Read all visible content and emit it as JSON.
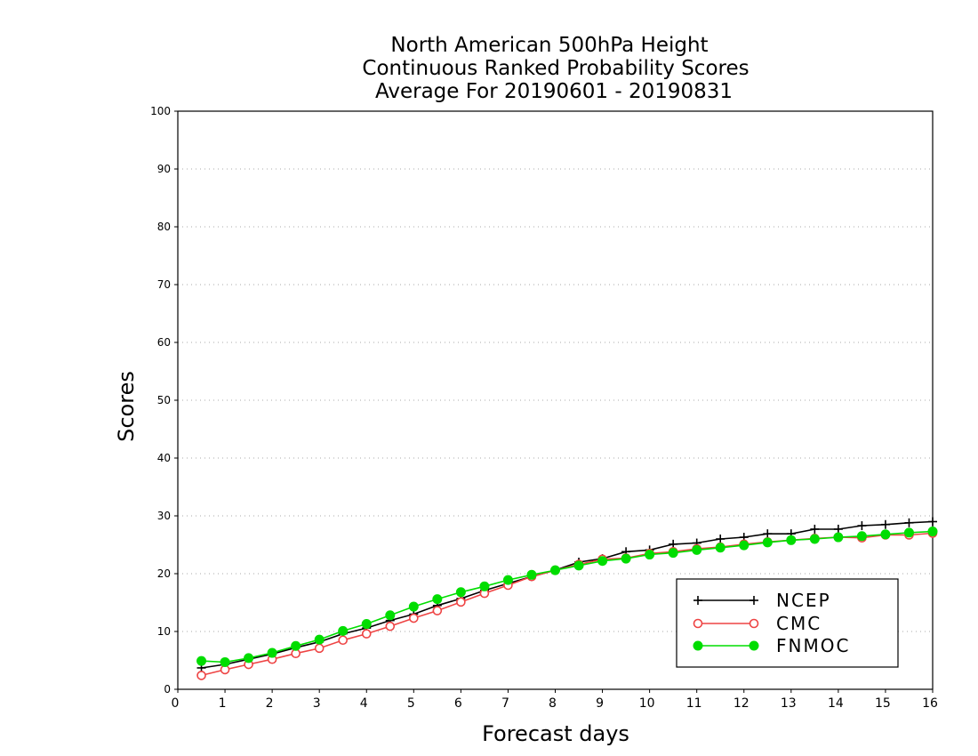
{
  "chart_data": {
    "type": "line",
    "title": [
      "North American 500hPa Height",
      "Continuous Ranked Probability Scores",
      "Average For 20190601 - 20190831"
    ],
    "xlabel": "Forecast days",
    "ylabel": "Scores",
    "xlim": [
      0,
      16
    ],
    "ylim": [
      0,
      100
    ],
    "xticks": [
      "0",
      "1",
      "2",
      "3",
      "4",
      "5",
      "6",
      "7",
      "8",
      "9",
      "10",
      "11",
      "12",
      "13",
      "14",
      "15",
      "16"
    ],
    "yticks": [
      "0",
      "10",
      "20",
      "30",
      "40",
      "50",
      "60",
      "70",
      "80",
      "90",
      "100"
    ],
    "grid": "horizontal-dotted",
    "legend_position": "lower-right",
    "x": [
      0.5,
      1,
      1.5,
      2,
      2.5,
      3,
      3.5,
      4,
      4.5,
      5,
      5.5,
      6,
      6.5,
      7,
      7.5,
      8,
      8.5,
      9,
      9.5,
      10,
      10.5,
      11,
      11.5,
      12,
      12.5,
      13,
      13.5,
      14,
      14.5,
      15,
      15.5,
      16
    ],
    "series": [
      {
        "name": "NCEP",
        "color": "#000000",
        "marker": "plus",
        "values": [
          3.7,
          4.3,
          5.2,
          6.1,
          7.2,
          8.2,
          9.6,
          10.6,
          11.9,
          13.0,
          14.5,
          15.7,
          17.1,
          18.3,
          19.5,
          20.6,
          22.0,
          22.6,
          23.8,
          24.1,
          25.1,
          25.3,
          26.0,
          26.3,
          26.9,
          26.9,
          27.7,
          27.7,
          28.3,
          28.5,
          28.8,
          29.0
        ]
      },
      {
        "name": "CMC",
        "color": "#ee4444",
        "marker": "open-circle",
        "values": [
          2.4,
          3.4,
          4.3,
          5.2,
          6.2,
          7.1,
          8.5,
          9.6,
          10.9,
          12.3,
          13.6,
          15.1,
          16.6,
          18.0,
          19.5,
          20.6,
          21.6,
          22.5,
          22.7,
          23.5,
          23.8,
          24.3,
          24.6,
          25.1,
          25.5,
          25.8,
          26.1,
          26.3,
          26.2,
          26.7,
          26.7,
          27.0
        ]
      },
      {
        "name": "FNMOC",
        "color": "#00dd00",
        "marker": "filled-circle",
        "values": [
          4.9,
          4.7,
          5.4,
          6.3,
          7.5,
          8.6,
          10.1,
          11.3,
          12.8,
          14.3,
          15.6,
          16.8,
          17.8,
          18.9,
          19.8,
          20.6,
          21.4,
          22.2,
          22.6,
          23.3,
          23.6,
          24.1,
          24.5,
          24.9,
          25.4,
          25.8,
          26.0,
          26.3,
          26.5,
          26.8,
          27.1,
          27.3
        ]
      }
    ]
  }
}
